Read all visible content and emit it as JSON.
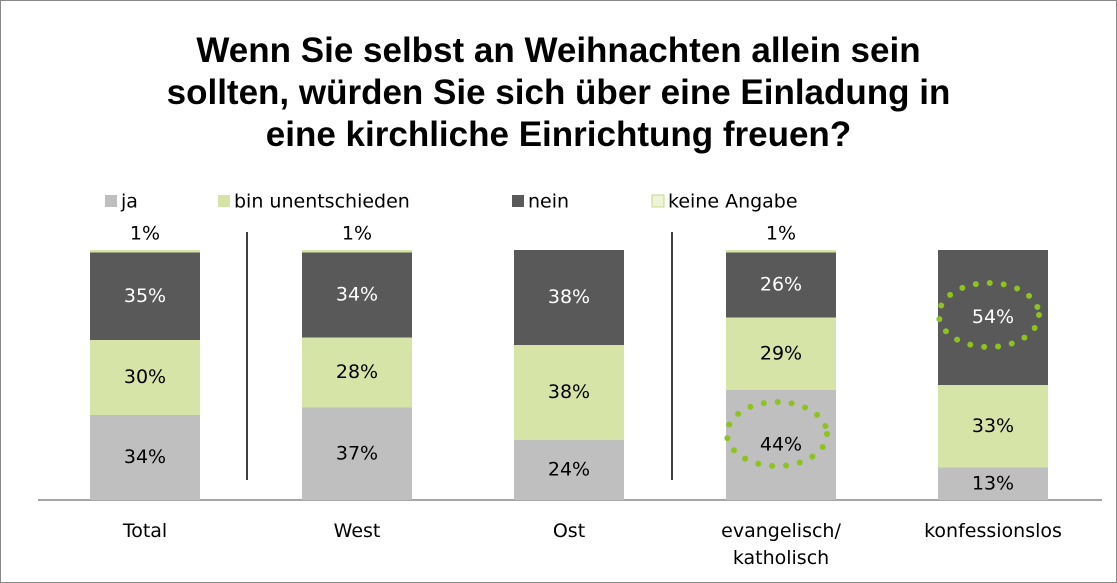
{
  "chart_data": {
    "type": "bar",
    "stacked": true,
    "title": "Wenn Sie selbst an Weihnachten allein sein\nsollten, würden Sie sich über eine Einladung in\neine kirchliche Einrichtung freuen?",
    "categories": [
      "Total",
      "West",
      "Ost",
      "evangelisch/\nkatholisch",
      "konfessionslos"
    ],
    "ylim": [
      0,
      100
    ],
    "series": [
      {
        "name": "ja",
        "color": "#bfbfbf",
        "values": [
          34,
          37,
          24,
          44,
          13
        ],
        "value_labels": [
          "34%",
          "37%",
          "24%",
          "44%",
          "13%"
        ]
      },
      {
        "name": "bin unentschieden",
        "color": "#d7e4a8",
        "values": [
          30,
          28,
          38,
          29,
          33
        ],
        "value_labels": [
          "30%",
          "28%",
          "38%",
          "29%",
          "33%"
        ]
      },
      {
        "name": "nein",
        "color": "#595959",
        "values": [
          35,
          34,
          38,
          26,
          54
        ],
        "value_labels": [
          "35%",
          "34%",
          "38%",
          "26%",
          "54%"
        ]
      },
      {
        "name": "keine Angabe",
        "color": "#d7e4a8",
        "values": [
          1,
          1,
          null,
          1,
          null
        ],
        "value_labels": [
          "1%",
          "1%",
          null,
          "1%",
          null
        ]
      }
    ]
  }
}
